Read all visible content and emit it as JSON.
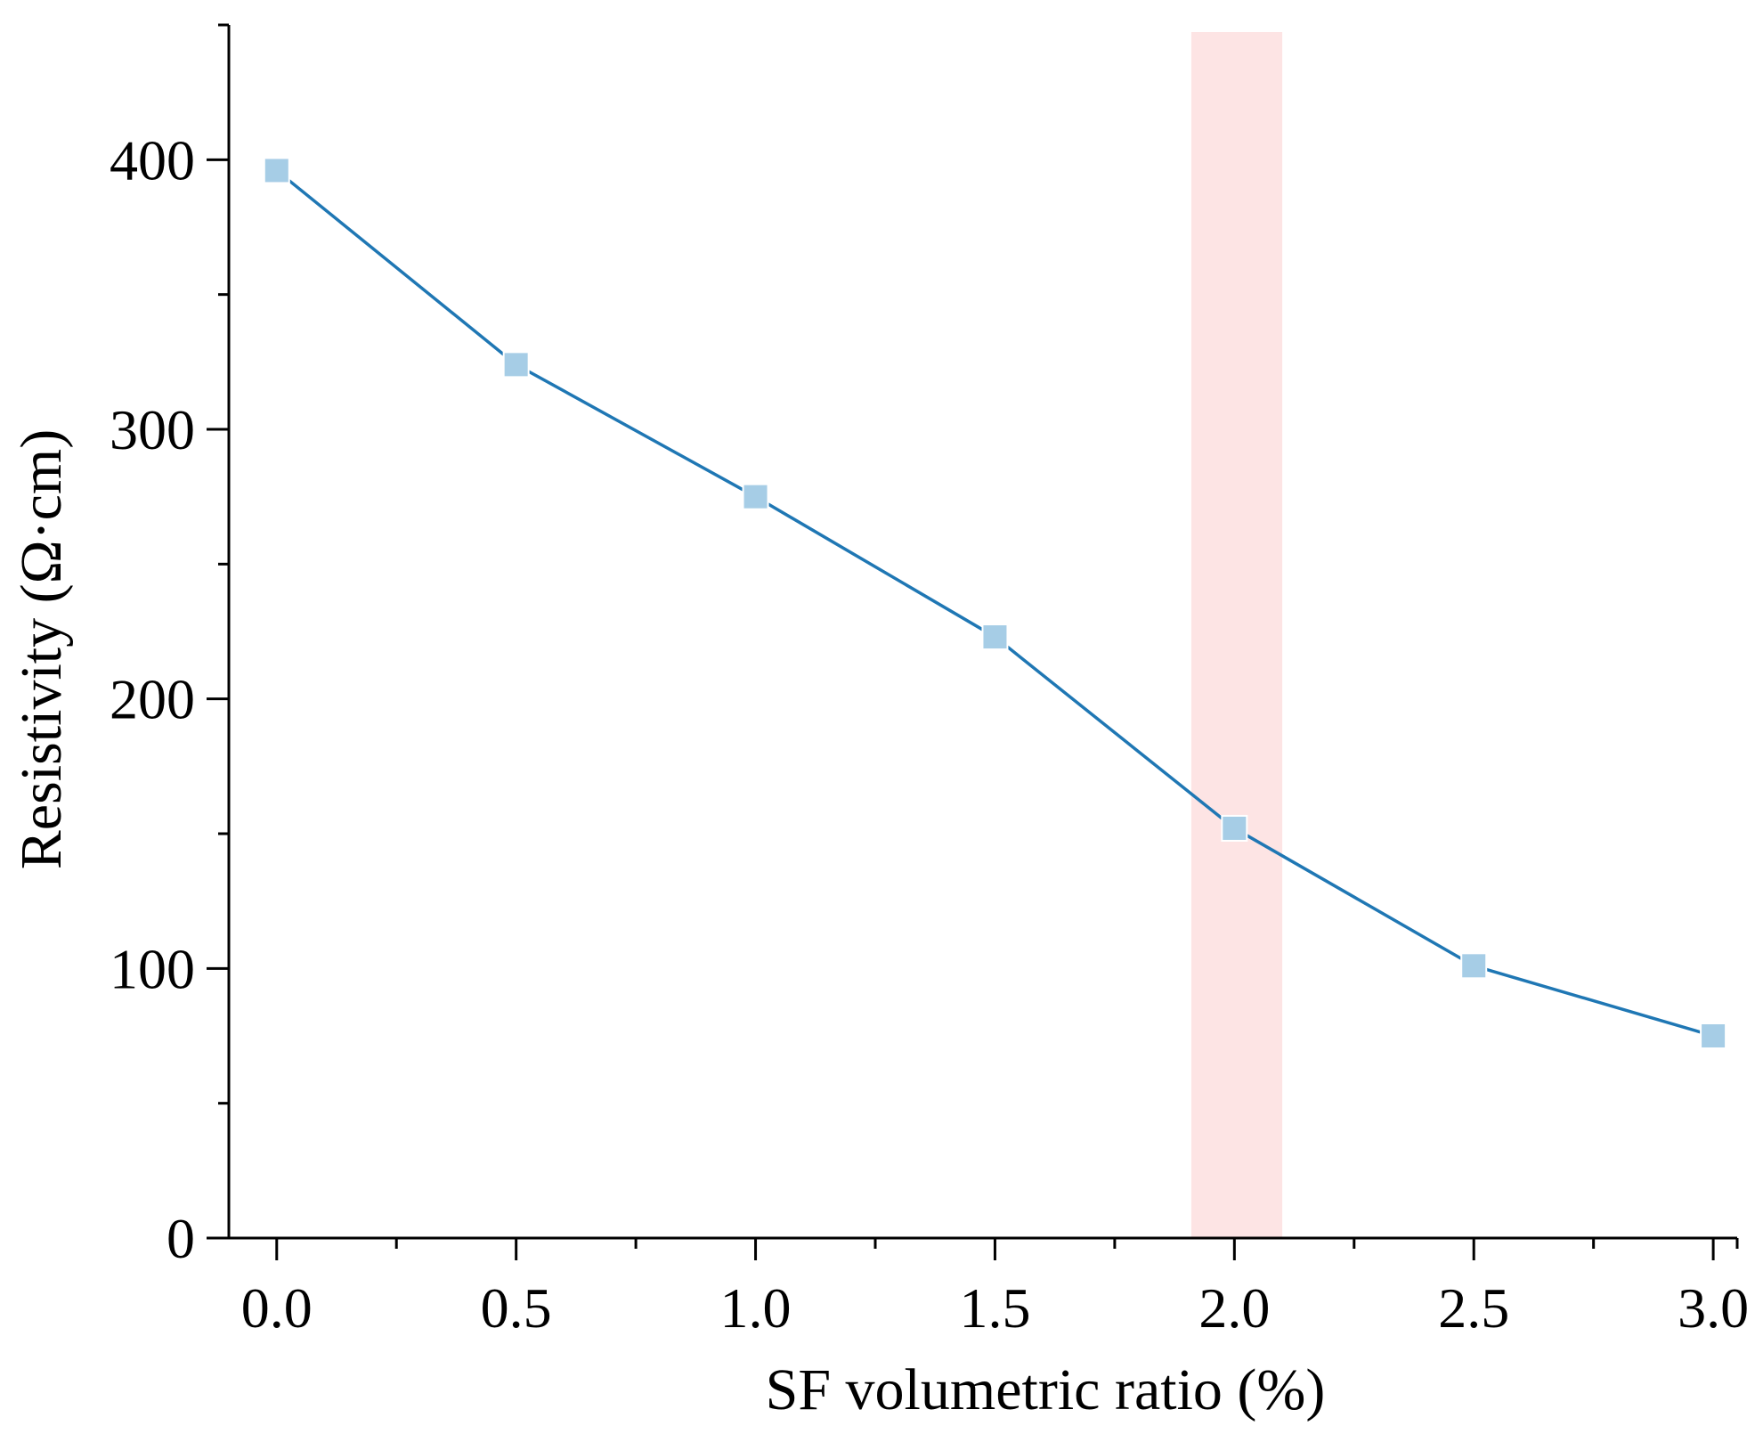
{
  "chart_data": {
    "type": "line",
    "title": "",
    "xlabel": "SF volumetric ratio (%)",
    "ylabel": "Resistivity (Ω·cm)",
    "xlim": [
      -0.1,
      3.05
    ],
    "ylim": [
      0,
      450
    ],
    "x_ticks": [
      0.0,
      0.5,
      1.0,
      1.5,
      2.0,
      2.5,
      3.0
    ],
    "x_tick_labels": [
      "0.0",
      "0.5",
      "1.0",
      "1.5",
      "2.0",
      "2.5",
      "3.0"
    ],
    "x_minor_ticks": [
      0.25,
      0.75,
      1.25,
      1.75,
      2.25,
      2.75
    ],
    "y_ticks": [
      0,
      100,
      200,
      300,
      400
    ],
    "y_tick_labels": [
      "0",
      "100",
      "200",
      "300",
      "400"
    ],
    "y_minor_ticks": [
      50,
      150,
      250,
      350
    ],
    "grid": false,
    "series": [
      {
        "name": "Resistivity",
        "x": [
          0.0,
          0.5,
          1.0,
          1.5,
          2.0,
          2.5,
          3.0
        ],
        "values": [
          396,
          324,
          275,
          223,
          152,
          101,
          75
        ],
        "line_color": "#1f77b4",
        "marker_color": "#a6cde6",
        "marker": "square"
      }
    ],
    "highlight_band": {
      "x_range": [
        1.91,
        2.1
      ],
      "color": "#fde4e4"
    }
  }
}
